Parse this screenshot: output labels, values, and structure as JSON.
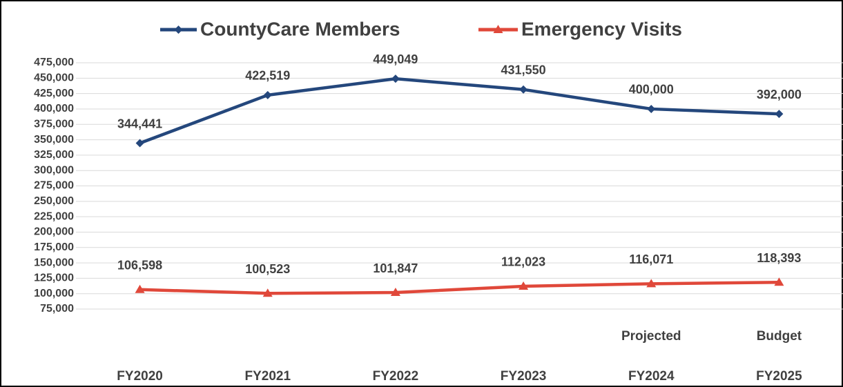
{
  "chart_data": {
    "type": "line",
    "categories": [
      "FY2020",
      "FY2021",
      "FY2022",
      "FY2023",
      "FY2024",
      "FY2025"
    ],
    "category_notes": [
      null,
      null,
      null,
      null,
      "Projected",
      "Budget"
    ],
    "series": [
      {
        "name": "CountyCare Members",
        "color": "#24477c",
        "marker": "diamond",
        "values": [
          344441,
          422519,
          449049,
          431550,
          400000,
          392000
        ],
        "value_labels": [
          "344,441",
          "422,519",
          "449,049",
          "431,550",
          "400,000",
          "392,000"
        ]
      },
      {
        "name": "Emergency Visits",
        "color": "#e0483a",
        "marker": "triangle",
        "values": [
          106598,
          100523,
          101847,
          112023,
          116071,
          118393
        ],
        "value_labels": [
          "106,598",
          "100,523",
          "101,847",
          "112,023",
          "116,071",
          "118,393"
        ]
      }
    ],
    "ylim": [
      75000,
      475000
    ],
    "yticks": [
      {
        "value": 75000,
        "label": "75,000"
      },
      {
        "value": 100000,
        "label": "100,000"
      },
      {
        "value": 125000,
        "label": "125,000"
      },
      {
        "value": 150000,
        "label": "150,000"
      },
      {
        "value": 175000,
        "label": "175,000"
      },
      {
        "value": 200000,
        "label": "200,000"
      },
      {
        "value": 225000,
        "label": "225,000"
      },
      {
        "value": 250000,
        "label": "250,000"
      },
      {
        "value": 275000,
        "label": "275,000"
      },
      {
        "value": 300000,
        "label": "300,000"
      },
      {
        "value": 325000,
        "label": "325,000"
      },
      {
        "value": 350000,
        "label": "350,000"
      },
      {
        "value": 375000,
        "label": "375,000"
      },
      {
        "value": 400000,
        "label": "400,000"
      },
      {
        "value": 425000,
        "label": "425,000"
      },
      {
        "value": 450000,
        "label": "450,000"
      },
      {
        "value": 475000,
        "label": "475,000"
      }
    ],
    "grid": true
  }
}
